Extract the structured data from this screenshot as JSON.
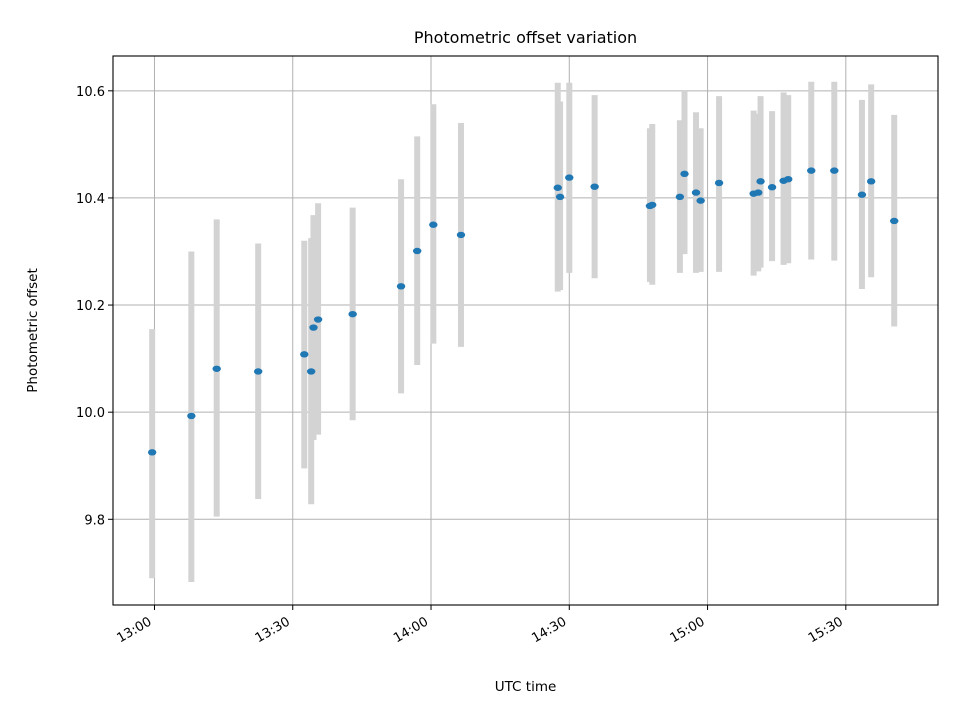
{
  "chart_data": {
    "type": "scatter",
    "title": "Photometric offset variation",
    "xlabel": "UTC time",
    "ylabel": "Photometric offset",
    "x_ticks": [
      "13:00",
      "13:30",
      "14:00",
      "14:30",
      "15:00",
      "15:30"
    ],
    "y_ticks": [
      "9.8",
      "10.0",
      "10.2",
      "10.4",
      "10.6"
    ],
    "xlim": [
      "12:51",
      "15:50"
    ],
    "ylim": [
      9.64,
      10.665
    ],
    "grid": true,
    "colors": {
      "marker": "#1f77b4",
      "errorbar": "#d3d3d3",
      "grid": "#b0b0b0"
    },
    "points": [
      {
        "t": "12:59:30",
        "y": 9.925,
        "lo": 9.69,
        "hi": 10.155
      },
      {
        "t": "13:08:00",
        "y": 9.993,
        "lo": 9.683,
        "hi": 10.3
      },
      {
        "t": "13:13:30",
        "y": 10.081,
        "lo": 9.805,
        "hi": 10.36
      },
      {
        "t": "13:22:30",
        "y": 10.076,
        "lo": 9.838,
        "hi": 10.315
      },
      {
        "t": "13:32:30",
        "y": 10.108,
        "lo": 9.895,
        "hi": 10.32
      },
      {
        "t": "13:34:00",
        "y": 10.076,
        "lo": 9.828,
        "hi": 10.325
      },
      {
        "t": "13:34:30",
        "y": 10.158,
        "lo": 9.948,
        "hi": 10.368
      },
      {
        "t": "13:35:30",
        "y": 10.173,
        "lo": 9.958,
        "hi": 10.39
      },
      {
        "t": "13:43:00",
        "y": 10.183,
        "lo": 9.985,
        "hi": 10.382
      },
      {
        "t": "13:53:30",
        "y": 10.235,
        "lo": 10.035,
        "hi": 10.435
      },
      {
        "t": "13:57:00",
        "y": 10.301,
        "lo": 10.088,
        "hi": 10.515
      },
      {
        "t": "14:00:30",
        "y": 10.35,
        "lo": 10.128,
        "hi": 10.575
      },
      {
        "t": "14:06:30",
        "y": 10.331,
        "lo": 10.122,
        "hi": 10.54
      },
      {
        "t": "14:27:30",
        "y": 10.419,
        "lo": 10.225,
        "hi": 10.615
      },
      {
        "t": "14:28:00",
        "y": 10.402,
        "lo": 10.228,
        "hi": 10.58
      },
      {
        "t": "14:30:00",
        "y": 10.438,
        "lo": 10.26,
        "hi": 10.615
      },
      {
        "t": "14:35:30",
        "y": 10.421,
        "lo": 10.25,
        "hi": 10.592
      },
      {
        "t": "14:47:30",
        "y": 10.385,
        "lo": 10.243,
        "hi": 10.53
      },
      {
        "t": "14:48:00",
        "y": 10.387,
        "lo": 10.238,
        "hi": 10.538
      },
      {
        "t": "14:54:00",
        "y": 10.402,
        "lo": 10.26,
        "hi": 10.545
      },
      {
        "t": "14:55:00",
        "y": 10.445,
        "lo": 10.295,
        "hi": 10.6
      },
      {
        "t": "14:57:30",
        "y": 10.41,
        "lo": 10.26,
        "hi": 10.56
      },
      {
        "t": "14:58:30",
        "y": 10.395,
        "lo": 10.262,
        "hi": 10.53
      },
      {
        "t": "15:02:30",
        "y": 10.428,
        "lo": 10.262,
        "hi": 10.59
      },
      {
        "t": "15:10:00",
        "y": 10.408,
        "lo": 10.255,
        "hi": 10.563
      },
      {
        "t": "15:11:00",
        "y": 10.41,
        "lo": 10.263,
        "hi": 10.557
      },
      {
        "t": "15:11:30",
        "y": 10.431,
        "lo": 10.27,
        "hi": 10.59
      },
      {
        "t": "15:14:00",
        "y": 10.42,
        "lo": 10.282,
        "hi": 10.562
      },
      {
        "t": "15:16:30",
        "y": 10.432,
        "lo": 10.275,
        "hi": 10.597
      },
      {
        "t": "15:17:30",
        "y": 10.435,
        "lo": 10.278,
        "hi": 10.592
      },
      {
        "t": "15:22:30",
        "y": 10.451,
        "lo": 10.285,
        "hi": 10.617
      },
      {
        "t": "15:27:30",
        "y": 10.451,
        "lo": 10.283,
        "hi": 10.617
      },
      {
        "t": "15:33:30",
        "y": 10.406,
        "lo": 10.23,
        "hi": 10.583
      },
      {
        "t": "15:35:30",
        "y": 10.431,
        "lo": 10.252,
        "hi": 10.612
      },
      {
        "t": "15:40:30",
        "y": 10.357,
        "lo": 10.16,
        "hi": 10.555
      }
    ]
  }
}
